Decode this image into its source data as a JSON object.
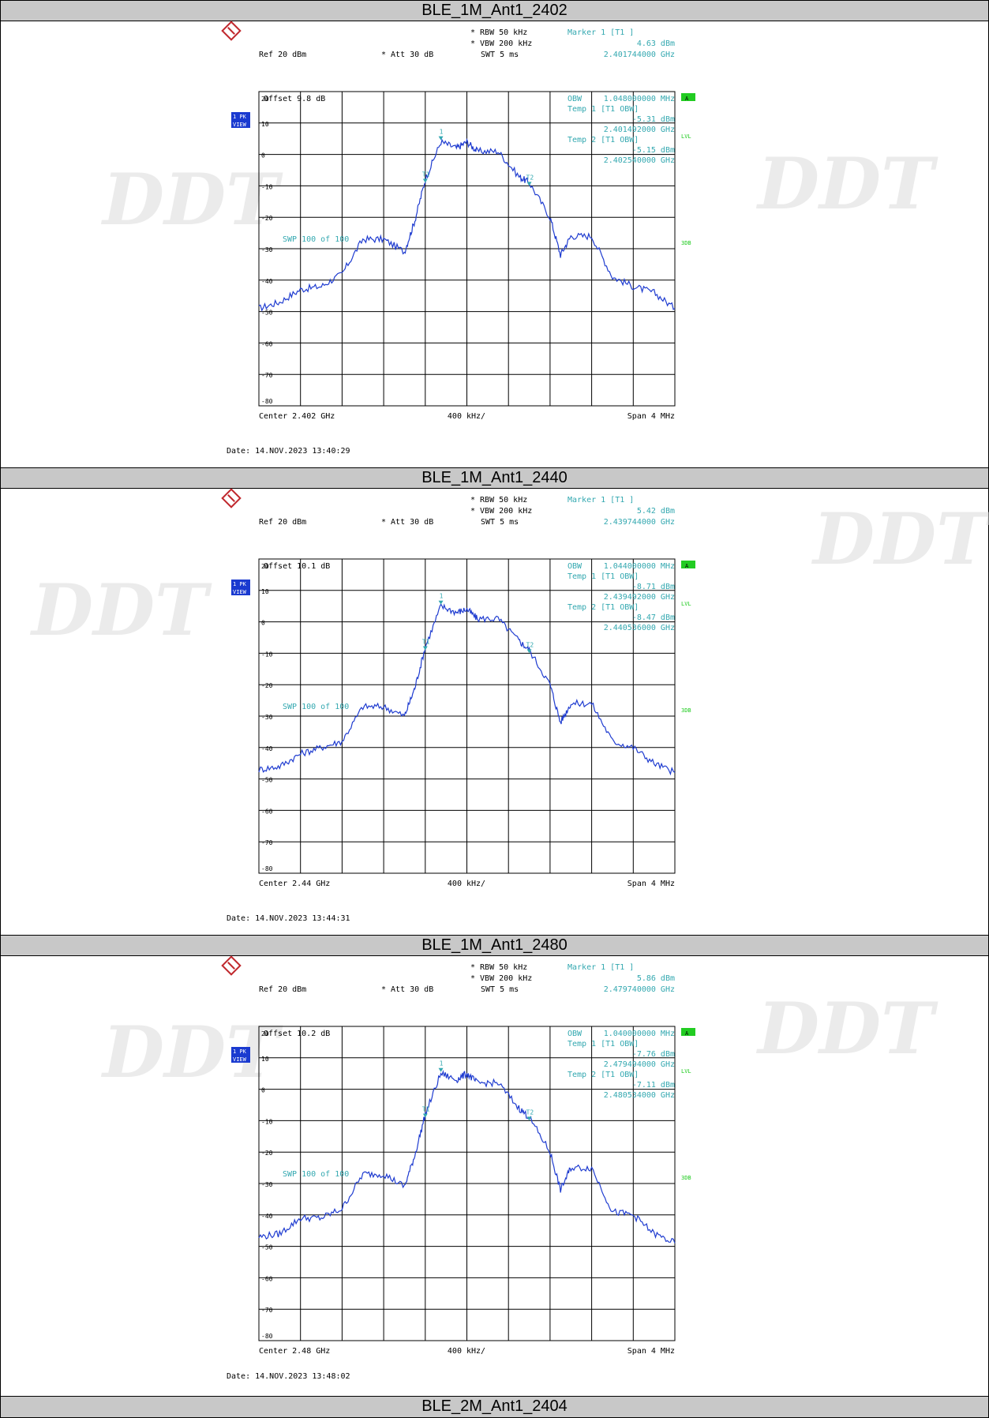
{
  "colors": {
    "trace": "#1f3cd0",
    "cyan": "#33a8b0",
    "header_bg": "#c8c8c8",
    "green": "#22cc22",
    "blue_box": "#1a3ad0"
  },
  "plots": [
    {
      "title": "BLE_1M_Ant1_2402",
      "rbw": "RBW 50 kHz",
      "vbw": "VBW 200 kHz",
      "swt": "SWT 5 ms",
      "ref": "Ref  20 dBm",
      "att": "Att   30 dB",
      "offset": "Offset   9.8 dB",
      "marker_hdr": "Marker 1 [T1 ]",
      "marker_val": "4.63 dBm",
      "marker_freq": "2.401744000 GHz",
      "obw_label": "OBW",
      "obw_val": "1.048000000 MHz",
      "temp1_label": "Temp 1 [T1 OBW]",
      "temp1_val": "-5.31 dBm",
      "temp1_freq": "2.401492000 GHz",
      "temp2_label": "Temp 2 [T1 OBW]",
      "temp2_val": "-5.15 dBm",
      "temp2_freq": "2.402540000 GHz",
      "swp": "SWP   100 of 100",
      "center": "Center  2.402 GHz",
      "div": "400 kHz/",
      "span": "Span  4 MHz",
      "date": "Date: 14.NOV.2023  13:40:29"
    },
    {
      "title": "BLE_1M_Ant1_2440",
      "rbw": "RBW 50 kHz",
      "vbw": "VBW 200 kHz",
      "swt": "SWT 5 ms",
      "ref": "Ref  20 dBm",
      "att": "Att   30 dB",
      "offset": "Offset   10.1 dB",
      "marker_hdr": "Marker 1 [T1 ]",
      "marker_val": "5.42 dBm",
      "marker_freq": "2.439744000 GHz",
      "obw_label": "OBW",
      "obw_val": "1.044000000 MHz",
      "temp1_label": "Temp 1 [T1 OBW]",
      "temp1_val": "-8.71 dBm",
      "temp1_freq": "2.439492000 GHz",
      "temp2_label": "Temp 2 [T1 OBW]",
      "temp2_val": "-8.47 dBm",
      "temp2_freq": "2.440536000 GHz",
      "swp": "SWP   100 of 100",
      "center": "Center  2.44 GHz",
      "div": "400 kHz/",
      "span": "Span  4 MHz",
      "date": "Date: 14.NOV.2023  13:44:31"
    },
    {
      "title": "BLE_1M_Ant1_2480",
      "rbw": "RBW 50 kHz",
      "vbw": "VBW 200 kHz",
      "swt": "SWT 5 ms",
      "ref": "Ref  20 dBm",
      "att": "Att   30 dB",
      "offset": "Offset   10.2 dB",
      "marker_hdr": "Marker 1 [T1 ]",
      "marker_val": "5.86 dBm",
      "marker_freq": "2.479740000 GHz",
      "obw_label": "OBW",
      "obw_val": "1.040000000 MHz",
      "temp1_label": "Temp 1 [T1 OBW]",
      "temp1_val": "-7.76 dBm",
      "temp1_freq": "2.479494000 GHz",
      "temp2_label": "Temp 2 [T1 OBW]",
      "temp2_val": "-7.11 dBm",
      "temp2_freq": "2.480534000 GHz",
      "swp": "SWP   100 of 100",
      "center": "Center  2.48 GHz",
      "div": "400 kHz/",
      "span": "Span  4 MHz",
      "date": "Date: 14.NOV.2023  13:48:02"
    }
  ],
  "footer_title": "BLE_2M_Ant1_2404",
  "side_labels": {
    "pk": "1 PK",
    "view": "VIEW",
    "a": "A",
    "lvl": "LVL",
    "three_db": "3DB",
    "t1": "T1",
    "t2": "T2",
    "m1": "1"
  },
  "y_ticks": [
    20,
    10,
    0,
    -10,
    -20,
    -30,
    -40,
    -50,
    -60,
    -70,
    -80
  ],
  "chart_data": [
    {
      "type": "line",
      "title": "BLE_1M_Ant1_2402",
      "xlabel": "",
      "ylabel": "",
      "xlim": [
        2.4,
        2.404
      ],
      "ylim": [
        -80,
        20
      ],
      "x": [
        2.4,
        2.4002,
        2.4004,
        2.4006,
        2.4008,
        2.401,
        2.4012,
        2.4014,
        2.4015,
        2.4016,
        2.40175,
        2.4019,
        2.402,
        2.4021,
        2.4023,
        2.4025,
        2.4026,
        2.4028,
        2.4029,
        2.403,
        2.4032,
        2.4034,
        2.4036,
        2.4038,
        2.404
      ],
      "series": [
        {
          "values": [
            -49,
            -47,
            -43,
            -42,
            -38,
            -27,
            -27,
            -31,
            -21,
            -8,
            4,
            2,
            4,
            1,
            1,
            -7,
            -9,
            -20,
            -32,
            -26,
            -26,
            -39,
            -42,
            -44,
            -49
          ]
        }
      ]
    },
    {
      "type": "line",
      "title": "BLE_1M_Ant1_2440",
      "xlabel": "",
      "ylabel": "",
      "xlim": [
        2.438,
        2.442
      ],
      "ylim": [
        -80,
        20
      ],
      "x": [
        2.438,
        2.4382,
        2.4384,
        2.4386,
        2.4388,
        2.439,
        2.4392,
        2.4394,
        2.4395,
        2.4396,
        2.43975,
        2.4399,
        2.44,
        2.4401,
        2.4403,
        2.4405,
        2.4406,
        2.4408,
        2.4409,
        2.441,
        2.4412,
        2.4414,
        2.4416,
        2.4418,
        2.442
      ],
      "series": [
        {
          "values": [
            -47,
            -46,
            -42,
            -40,
            -38,
            -27,
            -27,
            -30,
            -21,
            -8,
            5,
            3,
            4,
            1,
            1,
            -6,
            -9,
            -20,
            -32,
            -26,
            -26,
            -38,
            -40,
            -45,
            -48
          ]
        }
      ]
    },
    {
      "type": "line",
      "title": "BLE_1M_Ant1_2480",
      "xlabel": "",
      "ylabel": "",
      "xlim": [
        2.478,
        2.482
      ],
      "ylim": [
        -80,
        20
      ],
      "x": [
        2.478,
        2.4782,
        2.4784,
        2.4786,
        2.4788,
        2.479,
        2.4792,
        2.4794,
        2.4795,
        2.4796,
        2.47975,
        2.4799,
        2.48,
        2.4801,
        2.4803,
        2.4805,
        2.4806,
        2.4808,
        2.4809,
        2.481,
        2.4812,
        2.4814,
        2.4816,
        2.4818,
        2.482
      ],
      "series": [
        {
          "values": [
            -47,
            -46,
            -41,
            -41,
            -38,
            -27,
            -27,
            -31,
            -21,
            -8,
            5,
            3,
            5,
            2,
            2,
            -6,
            -9,
            -20,
            -32,
            -25,
            -25,
            -39,
            -40,
            -46,
            -49
          ]
        }
      ]
    }
  ]
}
